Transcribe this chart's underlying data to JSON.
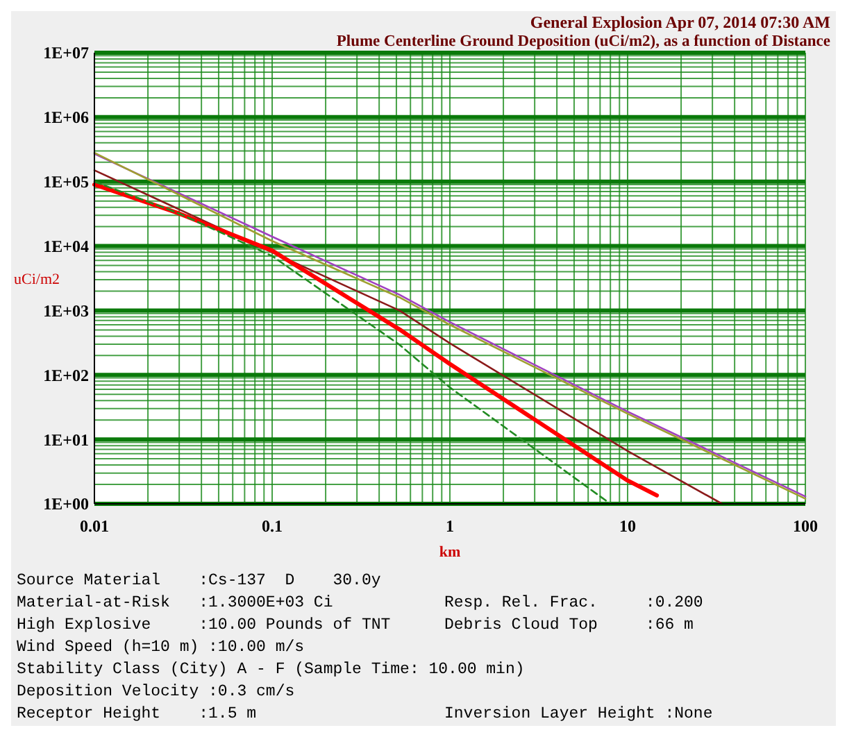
{
  "chart_data": {
    "type": "line",
    "title": "General Explosion  Apr 07, 2014 07:30 AM",
    "subtitle": "Plume Centerline Ground Deposition (uCi/m2), as a function of Distance",
    "xlabel": "km",
    "ylabel": "uCi/m2",
    "log": "xy",
    "grid": true,
    "xlim": [
      0.01,
      100
    ],
    "xticks": [
      0.01,
      0.1,
      1,
      10,
      100
    ],
    "ylim": [
      1,
      10000000
    ],
    "yticks": [
      {
        "value": 1,
        "label": "1E+00"
      },
      {
        "value": 10,
        "label": "1E+01"
      },
      {
        "value": 100,
        "label": "1E+02"
      },
      {
        "value": 1000,
        "label": "1E+03"
      },
      {
        "value": 10000,
        "label": "1E+04"
      },
      {
        "value": 100000,
        "label": "1E+05"
      },
      {
        "value": 1000000,
        "label": "1E+06"
      },
      {
        "value": 10000000,
        "label": "1E+07"
      }
    ],
    "series": [
      {
        "color": "#a040c0",
        "line_style": "solid",
        "x": [
          0.01,
          0.1,
          0.52,
          1,
          10,
          100
        ],
        "values": [
          270000,
          14000,
          1760,
          660,
          27,
          1.3
        ]
      },
      {
        "color": "#a0a030",
        "line_style": "solid",
        "x": [
          0.01,
          0.1,
          0.52,
          1,
          10,
          100
        ],
        "values": [
          280000,
          12000,
          1600,
          600,
          25,
          1.2
        ]
      },
      {
        "color": "#8b1a1a",
        "line_style": "solid",
        "x": [
          0.01,
          0.1,
          0.52,
          1,
          10,
          34
        ],
        "values": [
          150000,
          8000,
          1000,
          310,
          6.6,
          1
        ]
      },
      {
        "color": "#ff0000",
        "line_style": "solid",
        "x": [
          0.01,
          0.03,
          0.1,
          0.52,
          1,
          10,
          14.6
        ],
        "values": [
          90000,
          32000,
          8500,
          510,
          148,
          2.3,
          1.35
        ]
      },
      {
        "color": "#228b22",
        "line_style": "dashed",
        "x": [
          0.01,
          0.03,
          0.1,
          0.52,
          1,
          8
        ],
        "values": [
          100000,
          32000,
          7000,
          295,
          64,
          1
        ]
      }
    ],
    "annotations": [
      "Source Material    :Cs-137  D    30.0y",
      "Material-at-Risk   :1.3000E+03 Ci",
      "Resp. Rel. Frac.     :0.200",
      "High Explosive     :10.00 Pounds of TNT",
      "Debris Cloud Top     :66 m",
      "Wind Speed (h=10 m) :10.00 m/s",
      "Stability Class (City) A - F (Sample Time: 10.00 min)",
      "Deposition Velocity :0.3 cm/s",
      "Receptor Height    :1.5 m",
      "Inversion Layer Height :None"
    ]
  }
}
